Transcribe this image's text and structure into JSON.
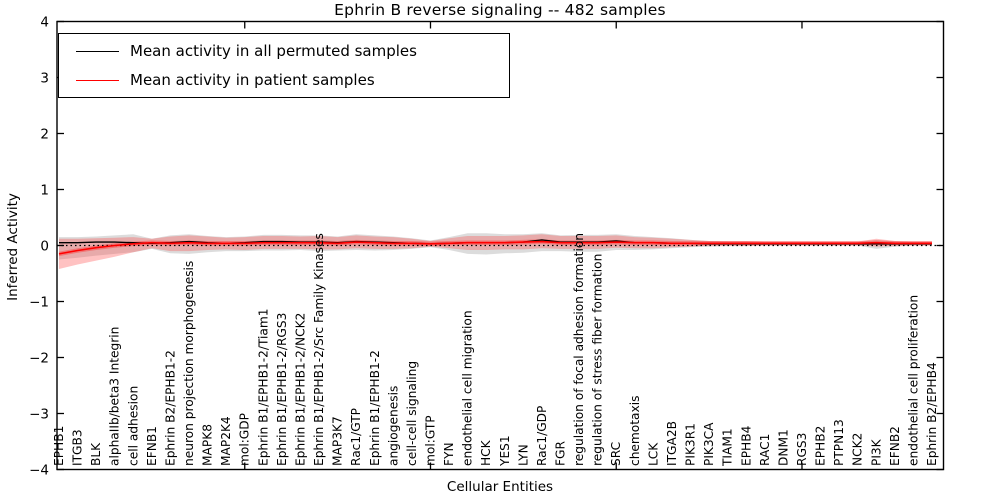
{
  "title": "Ephrin B reverse signaling -- 482 samples",
  "axes": {
    "xlabel": "Cellular Entities",
    "ylabel": "Inferred Activity",
    "ytick_values": [
      4,
      3,
      2,
      1,
      0,
      -1,
      -2,
      -3,
      -4
    ],
    "ytick_labels": [
      "4",
      "3",
      "2",
      "1",
      "0",
      "−1",
      "−2",
      "−3",
      "−4"
    ],
    "x_major_tick_indices": [
      10,
      20,
      30,
      40
    ]
  },
  "legend": {
    "items": [
      {
        "label": "Mean activity in all permuted samples",
        "color": "#000000"
      },
      {
        "label": "Mean activity in patient samples",
        "color": "#ff0000"
      }
    ]
  },
  "colors": {
    "permuted_line": "#000000",
    "patient_line": "#ff0000",
    "permuted_band": "#808080",
    "patient_band": "#ff4040",
    "patient_inner_band": "#ff2a2a",
    "axis": "#000000",
    "background": "#ffffff"
  },
  "chart_data": {
    "type": "line",
    "title": "Ephrin B reverse signaling -- 482 samples",
    "xlabel": "Cellular Entities",
    "ylabel": "Inferred Activity",
    "ylim": [
      -4,
      4
    ],
    "grid": false,
    "zero_line": "dotted",
    "legend_position": "upper left",
    "categories": [
      "EPHB1",
      "ITGB3",
      "BLK",
      "alphaIIb/beta3 Integrin",
      "cell adhesion",
      "EFNB1",
      "Ephrin B2/EPHB1-2",
      "neuron projection morphogenesis",
      "MAPK8",
      "MAP2K4",
      "mol:GDP",
      "Ephrin B1/EPHB1-2/Tiam1",
      "Ephrin B1/EPHB1-2/RGS3",
      "Ephrin B1/EPHB1-2/NCK2",
      "Ephrin B1/EPHB1-2/Src Family Kinases",
      "MAP3K7",
      "Rac1/GTP",
      "Ephrin B1/EPHB1-2",
      "angiogenesis",
      "cell-cell signaling",
      "mol:GTP",
      "FYN",
      "endothelial cell migration",
      "HCK",
      "YES1",
      "LYN",
      "Rac1/GDP",
      "FGR",
      "regulation of focal adhesion formation",
      "regulation of stress fiber formation",
      "SRC",
      "chemotaxis",
      "LCK",
      "ITGA2B",
      "PIK3R1",
      "PIK3CA",
      "TIAM1",
      "EPHB4",
      "RAC1",
      "DNM1",
      "RGS3",
      "EPHB2",
      "PTPN13",
      "NCK2",
      "PI3K",
      "EFNB2",
      "endothelial cell proliferation",
      "Ephrin B2/EPHB4"
    ],
    "series": [
      {
        "name": "Mean activity in all permuted samples",
        "color": "#000000",
        "values": [
          0.05,
          0.05,
          0.06,
          0.06,
          0.05,
          0.04,
          0.05,
          0.07,
          0.05,
          0.04,
          0.05,
          0.07,
          0.07,
          0.06,
          0.06,
          0.05,
          0.07,
          0.06,
          0.05,
          0.04,
          0.03,
          0.04,
          0.05,
          0.05,
          0.05,
          0.06,
          0.1,
          0.06,
          0.06,
          0.06,
          0.08,
          0.05,
          0.05,
          0.04,
          0.04,
          0.03,
          0.03,
          0.03,
          0.03,
          0.03,
          0.03,
          0.03,
          0.03,
          0.03,
          0.03,
          0.03,
          0.03,
          0.03
        ]
      },
      {
        "name": "Mean activity in patient samples",
        "color": "#ff0000",
        "values": [
          -0.15,
          -0.09,
          -0.04,
          0,
          0.03,
          0.05,
          0.04,
          0.05,
          0.04,
          0.04,
          0.04,
          0.05,
          0.05,
          0.05,
          0.05,
          0.04,
          0.06,
          0.05,
          0.04,
          0.04,
          0.03,
          0.04,
          0.05,
          0.05,
          0.05,
          0.06,
          0.07,
          0.05,
          0.05,
          0.05,
          0.06,
          0.05,
          0.05,
          0.04,
          0.04,
          0.04,
          0.04,
          0.04,
          0.04,
          0.04,
          0.04,
          0.04,
          0.04,
          0.04,
          0.05,
          0.04,
          0.04,
          0.04
        ]
      }
    ],
    "bands": [
      {
        "name": "permuted std",
        "color": "#808080",
        "opacity": 0.28,
        "upper": [
          0.15,
          0.15,
          0.16,
          0.18,
          0.2,
          0.12,
          0.18,
          0.2,
          0.17,
          0.15,
          0.16,
          0.19,
          0.19,
          0.18,
          0.18,
          0.16,
          0.2,
          0.18,
          0.16,
          0.13,
          0.09,
          0.15,
          0.22,
          0.22,
          0.2,
          0.2,
          0.22,
          0.18,
          0.19,
          0.19,
          0.2,
          0.17,
          0.15,
          0.13,
          0.1,
          0.08,
          0.07,
          0.07,
          0.06,
          0.06,
          0.06,
          0.06,
          0.06,
          0.06,
          0.1,
          0.07,
          0.06,
          0.06
        ],
        "lower": [
          -0.25,
          -0.22,
          -0.18,
          -0.15,
          -0.12,
          -0.06,
          -0.14,
          -0.15,
          -0.12,
          -0.1,
          -0.1,
          -0.09,
          -0.09,
          -0.08,
          -0.1,
          -0.09,
          -0.08,
          -0.09,
          -0.08,
          -0.06,
          -0.03,
          -0.08,
          -0.15,
          -0.16,
          -0.14,
          -0.13,
          -0.1,
          -0.1,
          -0.11,
          -0.11,
          -0.08,
          -0.08,
          -0.07,
          -0.05,
          -0.03,
          -0.02,
          -0.01,
          -0.01,
          0,
          0,
          0,
          0,
          0,
          0,
          -0.06,
          -0.02,
          0,
          0
        ]
      },
      {
        "name": "patient std",
        "color": "#ff4040",
        "opacity": 0.32,
        "upper": [
          0.12,
          0.12,
          0.13,
          0.14,
          0.15,
          0.12,
          0.16,
          0.18,
          0.16,
          0.14,
          0.15,
          0.17,
          0.17,
          0.16,
          0.17,
          0.15,
          0.18,
          0.16,
          0.15,
          0.12,
          0.08,
          0.13,
          0.17,
          0.17,
          0.17,
          0.18,
          0.2,
          0.17,
          0.17,
          0.17,
          0.18,
          0.15,
          0.14,
          0.12,
          0.1,
          0.08,
          0.08,
          0.08,
          0.07,
          0.07,
          0.07,
          0.07,
          0.07,
          0.07,
          0.12,
          0.08,
          0.07,
          0.07
        ],
        "lower": [
          -0.42,
          -0.34,
          -0.27,
          -0.2,
          -0.12,
          -0.05,
          -0.1,
          -0.1,
          -0.08,
          -0.07,
          -0.08,
          -0.06,
          -0.06,
          -0.06,
          -0.07,
          -0.07,
          -0.05,
          -0.06,
          -0.06,
          -0.05,
          -0.02,
          -0.05,
          -0.08,
          -0.08,
          -0.07,
          -0.07,
          -0.05,
          -0.06,
          -0.06,
          -0.06,
          -0.04,
          -0.05,
          -0.05,
          -0.03,
          -0.02,
          0,
          0,
          0,
          0.01,
          0.01,
          0.01,
          0.01,
          0.01,
          0.01,
          -0.02,
          0,
          0.01,
          0.01
        ]
      },
      {
        "name": "patient stderr",
        "color": "#ff2a2a",
        "opacity": 0.4,
        "upper": [
          -0.11,
          -0.05,
          0,
          0.04,
          0.07,
          0.09,
          0.08,
          0.09,
          0.08,
          0.08,
          0.08,
          0.09,
          0.09,
          0.09,
          0.09,
          0.08,
          0.1,
          0.09,
          0.08,
          0.08,
          0.07,
          0.08,
          0.09,
          0.09,
          0.09,
          0.1,
          0.11,
          0.09,
          0.09,
          0.09,
          0.1,
          0.09,
          0.09,
          0.08,
          0.08,
          0.08,
          0.08,
          0.08,
          0.08,
          0.08,
          0.08,
          0.08,
          0.08,
          0.08,
          0.09,
          0.08,
          0.08,
          0.08
        ],
        "lower": [
          -0.19,
          -0.13,
          -0.08,
          -0.04,
          -0.01,
          0.01,
          0,
          0.01,
          0,
          0,
          0,
          0.01,
          0.01,
          0.01,
          0.01,
          0,
          0.02,
          0.01,
          0,
          0,
          -0.01,
          0,
          0.01,
          0.01,
          0.01,
          0.02,
          0.03,
          0.01,
          0.01,
          0.01,
          0.02,
          0.01,
          0.01,
          0,
          0,
          0,
          0,
          0,
          0,
          0,
          0,
          0,
          0,
          0,
          0.01,
          0,
          0,
          0
        ]
      }
    ]
  }
}
